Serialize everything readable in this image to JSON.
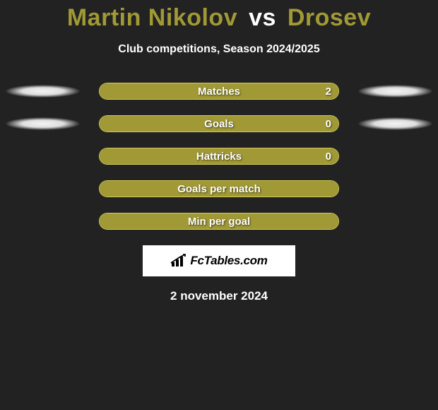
{
  "title": {
    "player1": "Martin Nikolov",
    "vs": "vs",
    "player2": "Drosev",
    "player1_color": "#a09935",
    "player2_color": "#a09935",
    "fontsize": 34
  },
  "subtitle": "Club competitions, Season 2024/2025",
  "stats": {
    "bar_border_color": "#d3cc5a",
    "bar_fill_color": "#a09935",
    "background_color": "#222222",
    "text_color": "#ffffff",
    "rows": [
      {
        "label": "Matches",
        "value": "2",
        "fill_pct": 100,
        "show_value": true,
        "show_shadows": true
      },
      {
        "label": "Goals",
        "value": "0",
        "fill_pct": 100,
        "show_value": true,
        "show_shadows": true
      },
      {
        "label": "Hattricks",
        "value": "0",
        "fill_pct": 100,
        "show_value": true,
        "show_shadows": false
      },
      {
        "label": "Goals per match",
        "value": "",
        "fill_pct": 100,
        "show_value": false,
        "show_shadows": false
      },
      {
        "label": "Min per goal",
        "value": "",
        "fill_pct": 100,
        "show_value": false,
        "show_shadows": false
      }
    ]
  },
  "logo": {
    "text": "FcTables.com",
    "icon_name": "fctables-bars-icon"
  },
  "date": "2 november 2024"
}
